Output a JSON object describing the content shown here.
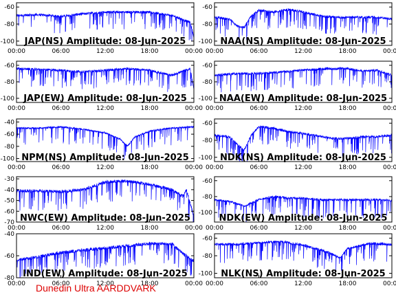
{
  "footer": "Dunedin Ultra AARDDVARK",
  "x_ticks": [
    "00:00",
    "06:00",
    "12:00",
    "18:00",
    "00:00"
  ],
  "chart_data": [
    {
      "type": "line",
      "title": "JAP(NS) Amplitude: 08-Jun-2025",
      "ylim": [
        -105,
        -55
      ],
      "yticks": [
        -60,
        -80,
        -100
      ],
      "color": "#0000ff",
      "x": [
        0,
        3,
        6,
        9,
        12,
        15,
        18,
        21,
        23.5,
        24
      ],
      "y": [
        -70,
        -69,
        -71,
        -68,
        -66,
        -66,
        -66,
        -70,
        -78,
        -95
      ]
    },
    {
      "type": "line",
      "title": "NAA(NS) Amplitude: 08-Jun-2025",
      "ylim": [
        -105,
        -55
      ],
      "yticks": [
        -60,
        -80,
        -100
      ],
      "color": "#0000ff",
      "x": [
        0,
        2,
        3,
        4,
        5,
        6,
        8,
        10,
        12,
        14,
        16,
        18,
        20,
        22,
        24
      ],
      "y": [
        -72,
        -74,
        -82,
        -84,
        -70,
        -64,
        -66,
        -63,
        -66,
        -70,
        -72,
        -72,
        -72,
        -72,
        -74
      ]
    },
    {
      "type": "line",
      "title": "JAP(EW) Amplitude: 08-Jun-2025",
      "ylim": [
        -105,
        -55
      ],
      "yticks": [
        -60,
        -80,
        -100
      ],
      "color": "#0000ff",
      "x": [
        0,
        3,
        6,
        9,
        12,
        15,
        18,
        21,
        23.5,
        24
      ],
      "y": [
        -64,
        -65,
        -66,
        -68,
        -66,
        -64,
        -66,
        -72,
        -64,
        -88
      ]
    },
    {
      "type": "line",
      "title": "NAA(EW) Amplitude: 08-Jun-2025",
      "ylim": [
        -105,
        -55
      ],
      "yticks": [
        -60,
        -80,
        -100
      ],
      "color": "#0000ff",
      "x": [
        0,
        3,
        6,
        9,
        12,
        15,
        18,
        20,
        22,
        24
      ],
      "y": [
        -72,
        -70,
        -70,
        -68,
        -66,
        -64,
        -64,
        -67,
        -66,
        -72
      ]
    },
    {
      "type": "line",
      "title": "NPM(NS) Amplitude: 08-Jun-2025",
      "ylim": [
        -105,
        -35
      ],
      "yticks": [
        -40,
        -60,
        -80,
        -100
      ],
      "color": "#0000ff",
      "x": [
        0,
        3,
        6,
        9,
        12,
        14,
        15,
        16,
        18,
        21,
        24
      ],
      "y": [
        -50,
        -50,
        -48,
        -52,
        -58,
        -68,
        -80,
        -65,
        -55,
        -50,
        -48
      ]
    },
    {
      "type": "line",
      "title": "NDK(NS) Amplitude: 08-Jun-2025",
      "ylim": [
        -105,
        -55
      ],
      "yticks": [
        -60,
        -80,
        -100
      ],
      "color": "#0000ff",
      "x": [
        0,
        2,
        3,
        4,
        5,
        6,
        8,
        10,
        12,
        14,
        16,
        18,
        20,
        22,
        24
      ],
      "y": [
        -74,
        -76,
        -84,
        -92,
        -74,
        -64,
        -66,
        -70,
        -72,
        -75,
        -78,
        -78,
        -76,
        -76,
        -74
      ]
    },
    {
      "type": "line",
      "title": "NWC(EW) Amplitude: 08-Jun-2025",
      "ylim": [
        -70,
        -28
      ],
      "yticks": [
        -30,
        -40,
        -50,
        -60,
        -70
      ],
      "color": "#0000ff",
      "x": [
        0,
        3,
        6,
        9,
        12,
        15,
        18,
        21,
        22.5,
        23,
        24
      ],
      "y": [
        -41,
        -41,
        -42,
        -40,
        -33,
        -32,
        -35,
        -40,
        -46,
        -40,
        -65
      ]
    },
    {
      "type": "line",
      "title": "NDK(EW) Amplitude: 08-Jun-2025",
      "ylim": [
        -112,
        -55
      ],
      "yticks": [
        -60,
        -80,
        -100
      ],
      "color": "#0000ff",
      "x": [
        0,
        2,
        4,
        6,
        8,
        10,
        12,
        14,
        16,
        18,
        20,
        22,
        24
      ],
      "y": [
        -84,
        -86,
        -92,
        -84,
        -80,
        -82,
        -82,
        -84,
        -84,
        -84,
        -84,
        -84,
        -85
      ]
    },
    {
      "type": "line",
      "title": "IND(EW) Amplitude: 08-Jun-2025",
      "ylim": [
        -80,
        -40
      ],
      "yticks": [
        -40,
        -60,
        -80
      ],
      "color": "#0000ff",
      "x": [
        0,
        3,
        6,
        9,
        12,
        15,
        18,
        21,
        22.5,
        24
      ],
      "y": [
        -64,
        -61,
        -57,
        -55,
        -53,
        -51,
        -49,
        -49,
        -58,
        -65
      ]
    },
    {
      "type": "line",
      "title": "NLK(NS) Amplitude: 08-Jun-2025",
      "ylim": [
        -105,
        -55
      ],
      "yticks": [
        -60,
        -80,
        -100
      ],
      "color": "#0000ff",
      "x": [
        0,
        3,
        5,
        6,
        9,
        12,
        15,
        17,
        18,
        21,
        24
      ],
      "y": [
        -67,
        -67,
        -66,
        -65,
        -64,
        -68,
        -75,
        -82,
        -72,
        -66,
        -67
      ]
    }
  ]
}
